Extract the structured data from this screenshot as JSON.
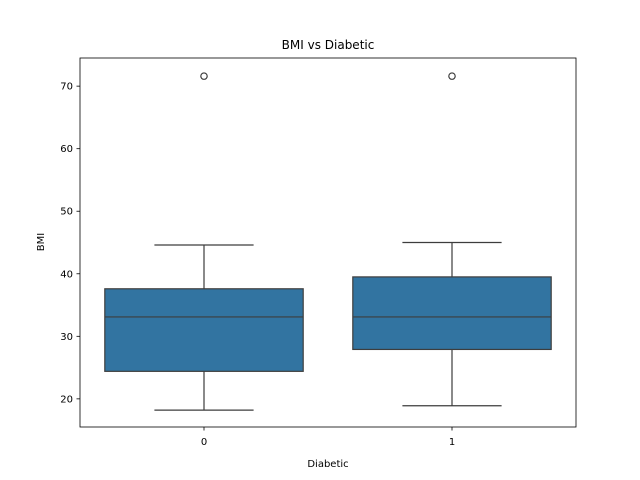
{
  "chart_data": {
    "type": "box",
    "title": "BMI vs Diabetic",
    "xlabel": "Diabetic",
    "ylabel": "BMI",
    "categories": [
      "0",
      "1"
    ],
    "ylim": [
      15.5,
      74.5
    ],
    "yticks": [
      20,
      30,
      40,
      50,
      60,
      70
    ],
    "grid": false,
    "box_color": "#3274a1",
    "edge_color": "#3d3d3d",
    "boxes": [
      {
        "category": "0",
        "whisker_low": 18.2,
        "q1": 24.4,
        "median": 33.1,
        "q3": 37.6,
        "whisker_high": 44.6,
        "outliers": [
          71.6
        ]
      },
      {
        "category": "1",
        "whisker_low": 18.9,
        "q1": 27.9,
        "median": 33.1,
        "q3": 39.5,
        "whisker_high": 45.0,
        "outliers": [
          71.6
        ]
      }
    ]
  }
}
